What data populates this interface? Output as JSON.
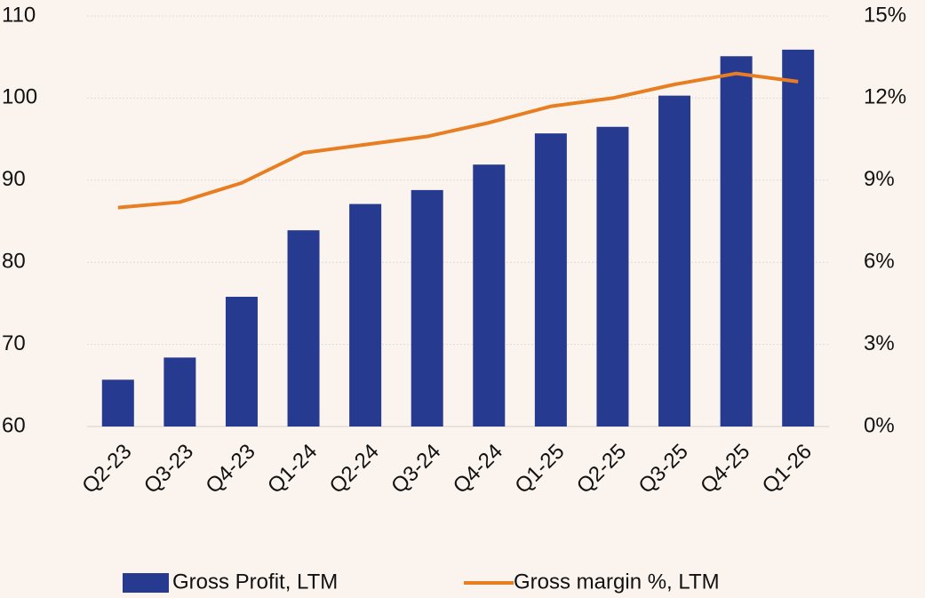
{
  "chart_data": {
    "type": "bar",
    "categories": [
      "Q2-23",
      "Q3-23",
      "Q4-23",
      "Q1-24",
      "Q2-24",
      "Q3-24",
      "Q4-24",
      "Q1-25",
      "Q2-25",
      "Q3-25",
      "Q4-25",
      "Q1-26"
    ],
    "series": [
      {
        "name": "Gross Profit, LTM",
        "type": "bar",
        "color": "#263a8f",
        "values": [
          65.7,
          68.4,
          75.8,
          83.9,
          87.1,
          88.8,
          91.9,
          95.7,
          96.5,
          100.3,
          105.1,
          105.9
        ]
      },
      {
        "name": "Gross margin %, LTM",
        "type": "line",
        "axis": "y2",
        "color": "#e87e22",
        "values": [
          8.0,
          8.2,
          8.9,
          10.0,
          10.3,
          10.6,
          11.1,
          11.7,
          12.0,
          12.5,
          12.9,
          12.6
        ]
      }
    ],
    "ylim": [
      60,
      110
    ],
    "yticks": [
      60,
      70,
      80,
      90,
      100,
      110
    ],
    "y2lim": [
      0,
      15
    ],
    "y2ticks": [
      {
        "value": 0,
        "label": "0%"
      },
      {
        "value": 3,
        "label": "3%"
      },
      {
        "value": 6,
        "label": "6%"
      },
      {
        "value": 9,
        "label": "9%"
      },
      {
        "value": 12,
        "label": "12%"
      },
      {
        "value": 15,
        "label": "15%"
      }
    ],
    "grid": true,
    "legend": "bottom"
  }
}
